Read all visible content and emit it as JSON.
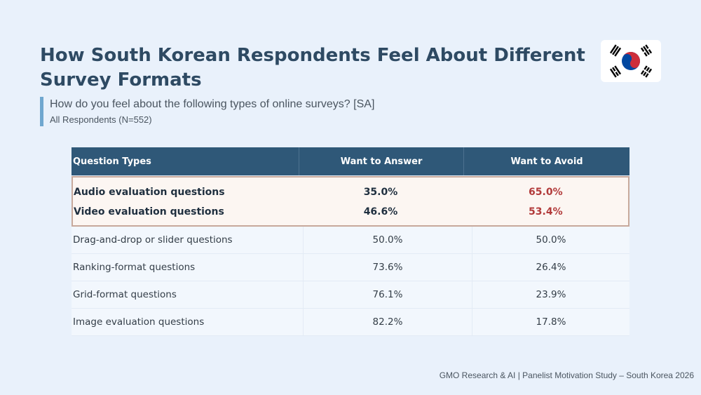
{
  "header": {
    "title": "How South Korean Respondents Feel About Different Survey Formats",
    "question": "How do you feel about the following types of online surveys? [SA]",
    "respondents": "All Respondents (N=552)"
  },
  "flag": {
    "icon": "south-korea-flag-icon",
    "colors": {
      "red": "#cd2e3a",
      "blue": "#0047a0",
      "black": "#000000"
    }
  },
  "table": {
    "headers": [
      "Question Types",
      "Want to Answer",
      "Want to Avoid"
    ],
    "highlighted_rows": [
      {
        "type": "Audio evaluation questions",
        "answer": "35.0%",
        "avoid": "65.0%"
      },
      {
        "type": "Video evaluation questions",
        "answer": "46.6%",
        "avoid": "53.4%"
      }
    ],
    "rows": [
      {
        "type": "Drag-and-drop or slider questions",
        "answer": "50.0%",
        "avoid": "50.0%"
      },
      {
        "type": "Ranking-format questions",
        "answer": "73.6%",
        "avoid": "26.4%"
      },
      {
        "type": "Grid-format questions",
        "answer": "76.1%",
        "avoid": "23.9%"
      },
      {
        "type": "Image evaluation questions",
        "answer": "82.2%",
        "avoid": "17.8%"
      }
    ]
  },
  "footer": {
    "source": "GMO Research & AI | Panelist Motivation Study – South Korea 2026"
  },
  "colors": {
    "header_bg": "#2f5878",
    "highlight_border": "#c7a99c",
    "avoid_highlight": "#b23b3b",
    "accent_bar": "#6fa7cf"
  }
}
